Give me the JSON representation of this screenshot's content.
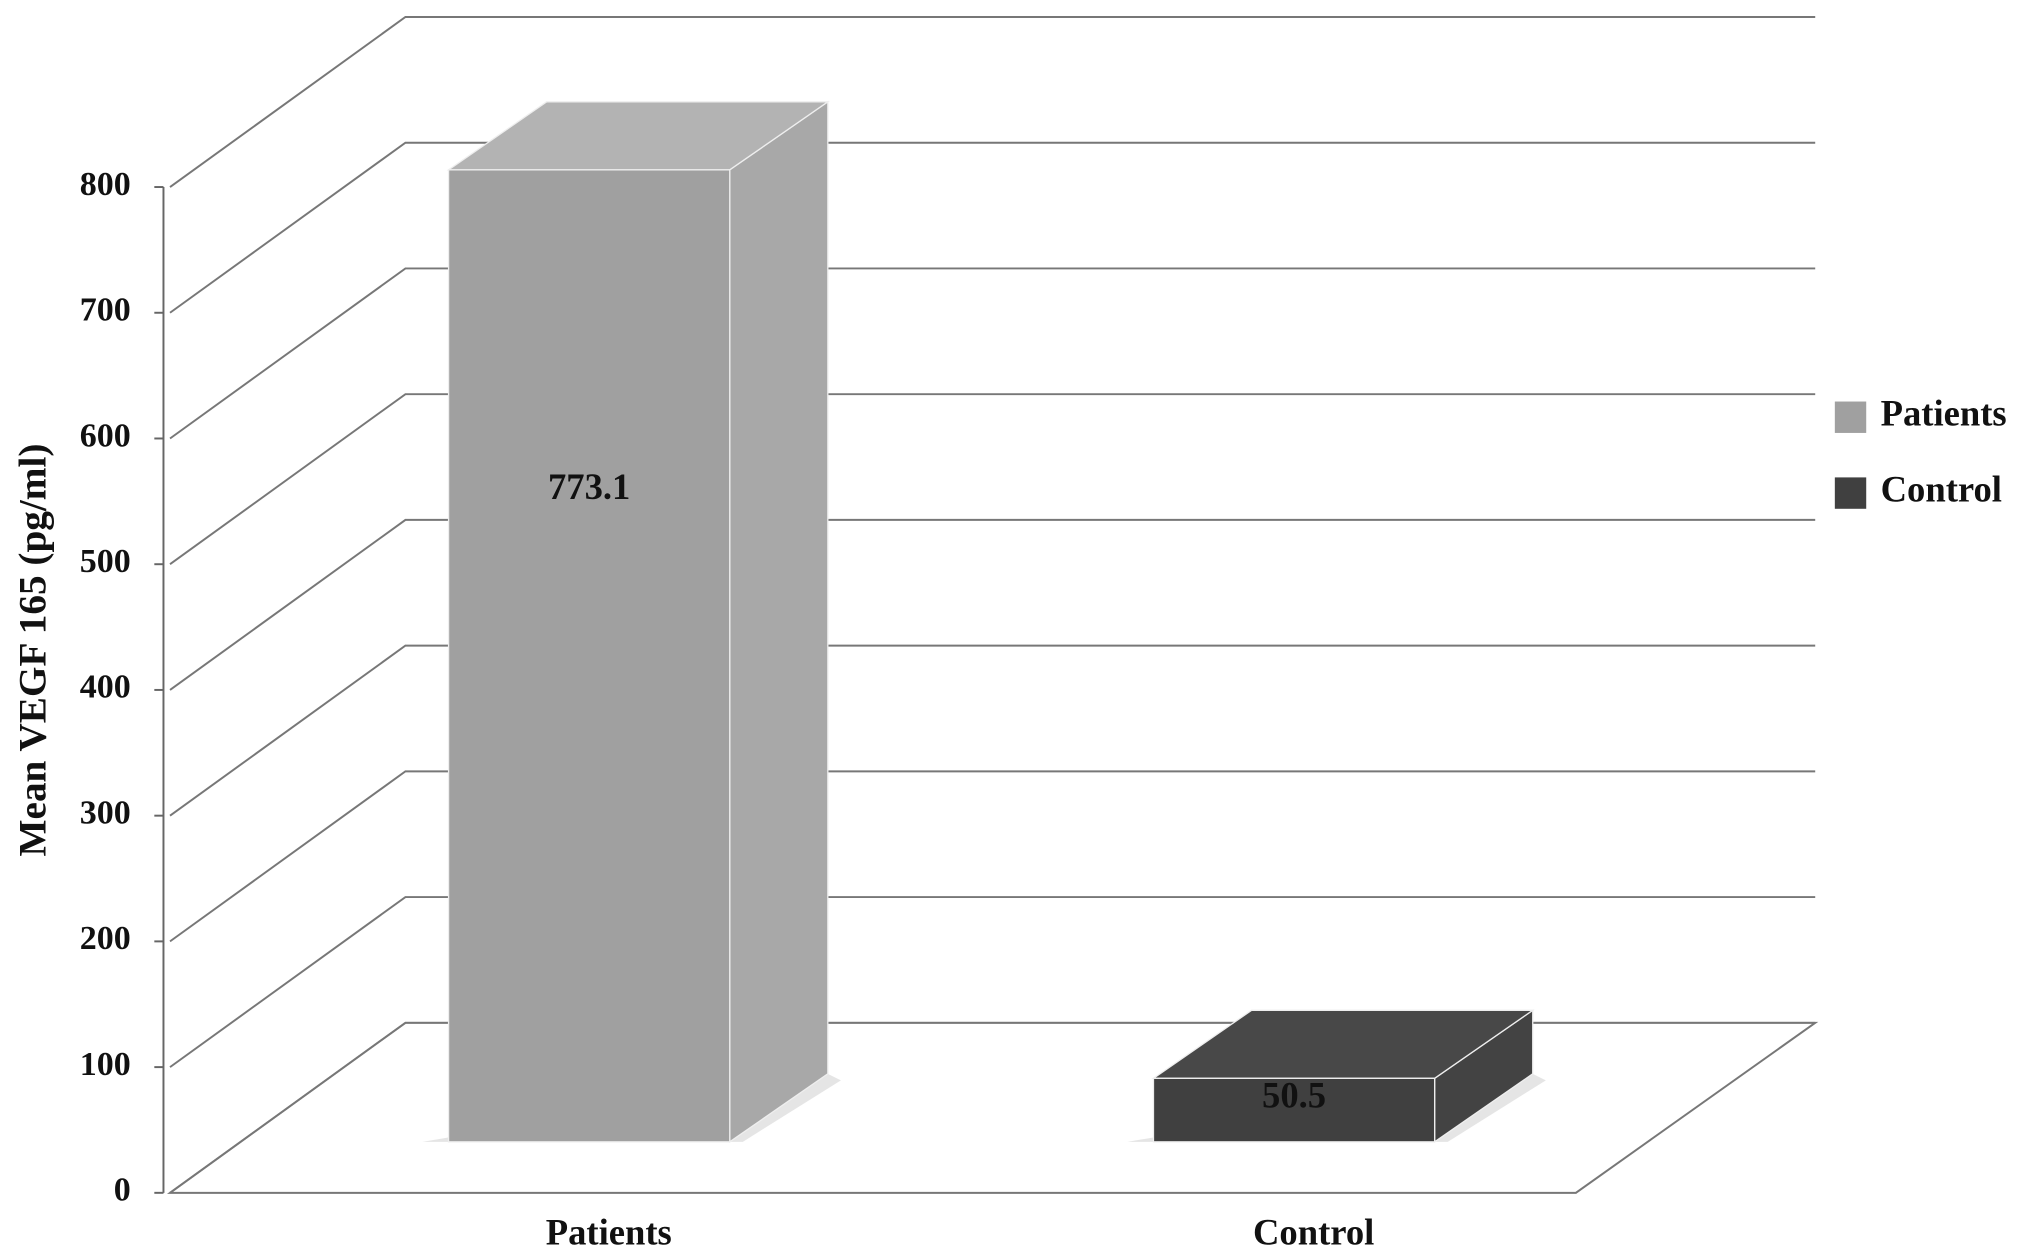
{
  "chart_data": {
    "type": "bar3d",
    "y_label": "Mean VEGF 165 (pg/ml)",
    "categories": [
      "Patients",
      "Control"
    ],
    "values": [
      773.1,
      50.5
    ],
    "colors": [
      "#a0a0a0",
      "#404040"
    ],
    "ylim": [
      0,
      800
    ],
    "yticks": [
      0,
      100,
      200,
      300,
      400,
      500,
      600,
      700,
      800
    ],
    "grid": true,
    "legend": "right"
  }
}
